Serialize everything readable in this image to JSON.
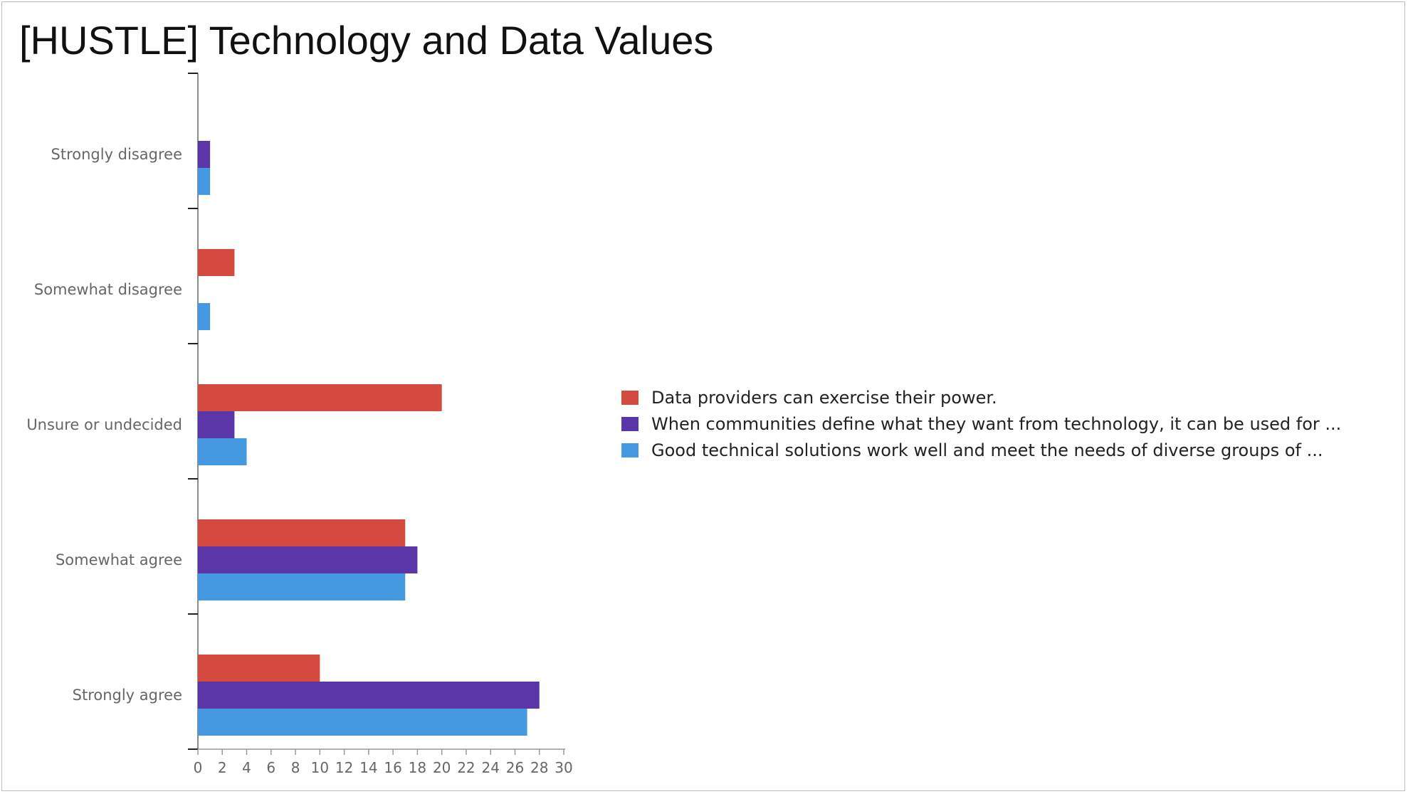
{
  "title": "[HUSTLE] Technology and Data Values",
  "chart_data": {
    "type": "bar",
    "orientation": "horizontal",
    "categories": [
      "Strongly disagree",
      "Somewhat disagree",
      "Unsure or undecided",
      "Somewhat agree",
      "Strongly agree"
    ],
    "series": [
      {
        "name": "Data providers can exercise their power.",
        "color": "#d44a3f",
        "values": [
          0,
          3,
          20,
          17,
          10
        ]
      },
      {
        "name": "When communities define what they want from technology, it can be used for ...",
        "color": "#5b36a8",
        "values": [
          1,
          0,
          3,
          18,
          28
        ]
      },
      {
        "name": "Good technical solutions work well and meet the needs of diverse groups of ...",
        "color": "#4499e0",
        "values": [
          1,
          1,
          4,
          17,
          27
        ]
      }
    ],
    "xlim": [
      0,
      30
    ],
    "xticks": [
      0,
      2,
      4,
      6,
      8,
      10,
      12,
      14,
      16,
      18,
      20,
      22,
      24,
      26,
      28,
      30
    ],
    "legend_position": "right",
    "grid": false
  }
}
